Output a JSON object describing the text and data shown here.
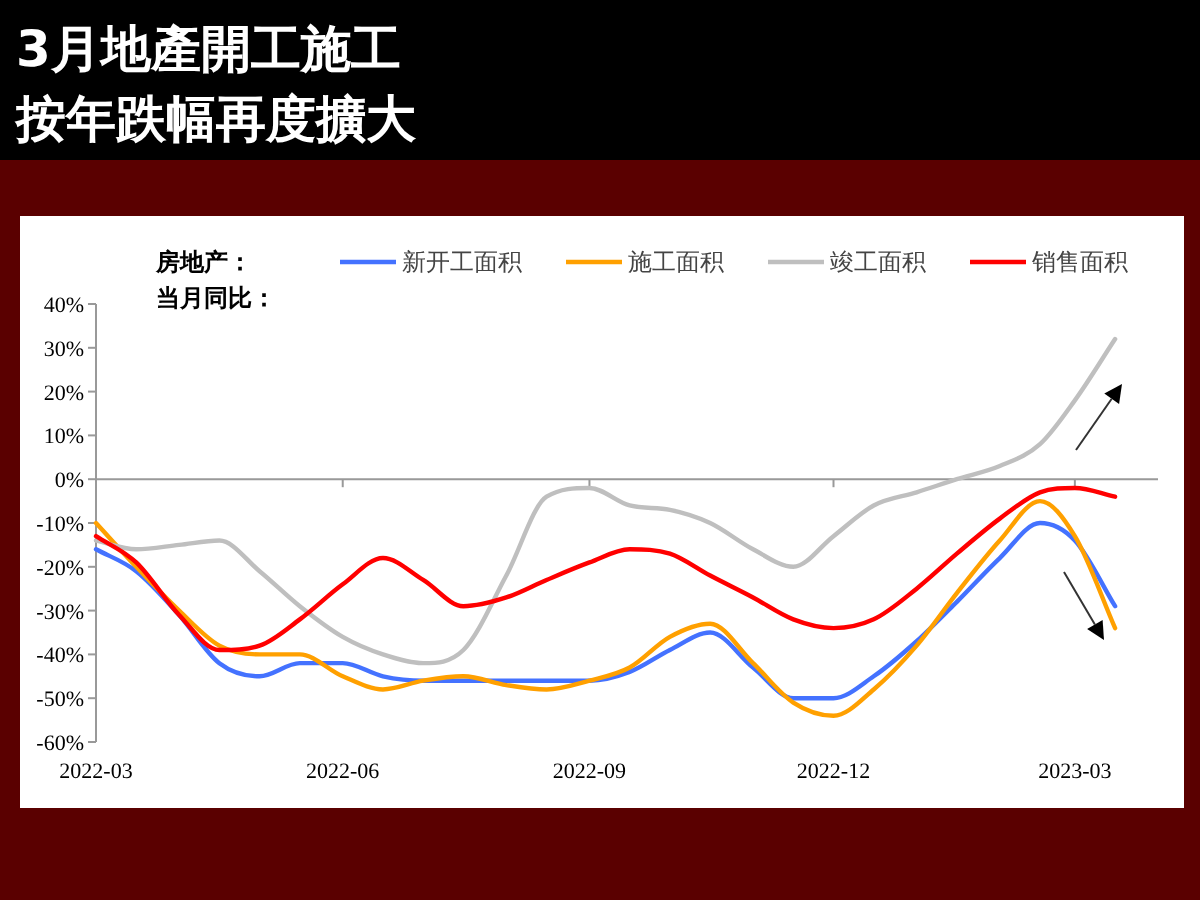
{
  "chart_data": {
    "type": "line",
    "title": "3月地產開工施工",
    "subtitle": "按年跌幅再度擴大",
    "legend_title": "房地产：当月同比：",
    "legend": "top",
    "x": [
      "2022-03-01",
      "2022-03-16",
      "2022-04-01",
      "2022-04-16",
      "2022-05-01",
      "2022-05-16",
      "2022-06-01",
      "2022-06-16",
      "2022-07-01",
      "2022-07-16",
      "2022-08-01",
      "2022-08-16",
      "2022-09-01",
      "2022-09-16",
      "2022-10-01",
      "2022-10-16",
      "2022-11-01",
      "2022-11-16",
      "2022-12-01",
      "2022-12-16",
      "2023-01-01",
      "2023-01-16",
      "2023-02-01",
      "2023-02-16",
      "2023-03-01",
      "2023-03-16"
    ],
    "xlim": [
      "2022-03-01",
      "2023-04-01"
    ],
    "xticks": [
      {
        "value": "2022-03-01",
        "label": "2022-03"
      },
      {
        "value": "2022-06-01",
        "label": "2022-06"
      },
      {
        "value": "2022-09-01",
        "label": "2022-09"
      },
      {
        "value": "2022-12-01",
        "label": "2022-12"
      },
      {
        "value": "2023-03-01",
        "label": "2023-03"
      }
    ],
    "ylim": [
      -60,
      40
    ],
    "yticks": [
      {
        "value": -60,
        "label": "-60%"
      },
      {
        "value": -50,
        "label": "-50%"
      },
      {
        "value": -40,
        "label": "-40%"
      },
      {
        "value": -30,
        "label": "-30%"
      },
      {
        "value": -20,
        "label": "-20%"
      },
      {
        "value": -10,
        "label": "-10%"
      },
      {
        "value": 0,
        "label": "0%"
      },
      {
        "value": 10,
        "label": "10%"
      },
      {
        "value": 20,
        "label": "20%"
      },
      {
        "value": 30,
        "label": "30%"
      },
      {
        "value": 40,
        "label": "40%"
      }
    ],
    "series": [
      {
        "name": "新开工面积",
        "color": "#4472ff",
        "values": [
          -16,
          -21,
          -31,
          -42,
          -45,
          -42,
          -42,
          -45,
          -46,
          -46,
          -46,
          -46,
          -46,
          -44,
          -39,
          -35,
          -43,
          -50,
          -50,
          -45,
          -37,
          -28,
          -18,
          -10,
          -14,
          -29
        ]
      },
      {
        "name": "施工面积",
        "color": "#ffa000",
        "values": [
          -10,
          -20,
          -30,
          -38,
          -40,
          -40,
          -45,
          -48,
          -46,
          -45,
          -47,
          -48,
          -46,
          -43,
          -36,
          -33,
          -42,
          -51,
          -54,
          -48,
          -38,
          -26,
          -14,
          -5,
          -13,
          -34
        ]
      },
      {
        "name": "竣工面积",
        "color": "#bfbfbf",
        "values": [
          -14,
          -16,
          -15,
          -14,
          -21,
          -29,
          -36,
          -40,
          -42,
          -39,
          -22,
          -4,
          -2,
          -6,
          -7,
          -10,
          -16,
          -20,
          -13,
          -6,
          -3,
          0,
          3,
          8,
          18,
          32
        ]
      },
      {
        "name": "销售面积",
        "color": "#ff0000",
        "values": [
          -13,
          -19,
          -31,
          -39,
          -38,
          -32,
          -24,
          -18,
          -23,
          -29,
          -27,
          -23,
          -19,
          -16,
          -17,
          -22,
          -27,
          -32,
          -34,
          -32,
          -25,
          -17,
          -9,
          -3,
          -2,
          -4
        ]
      }
    ]
  }
}
